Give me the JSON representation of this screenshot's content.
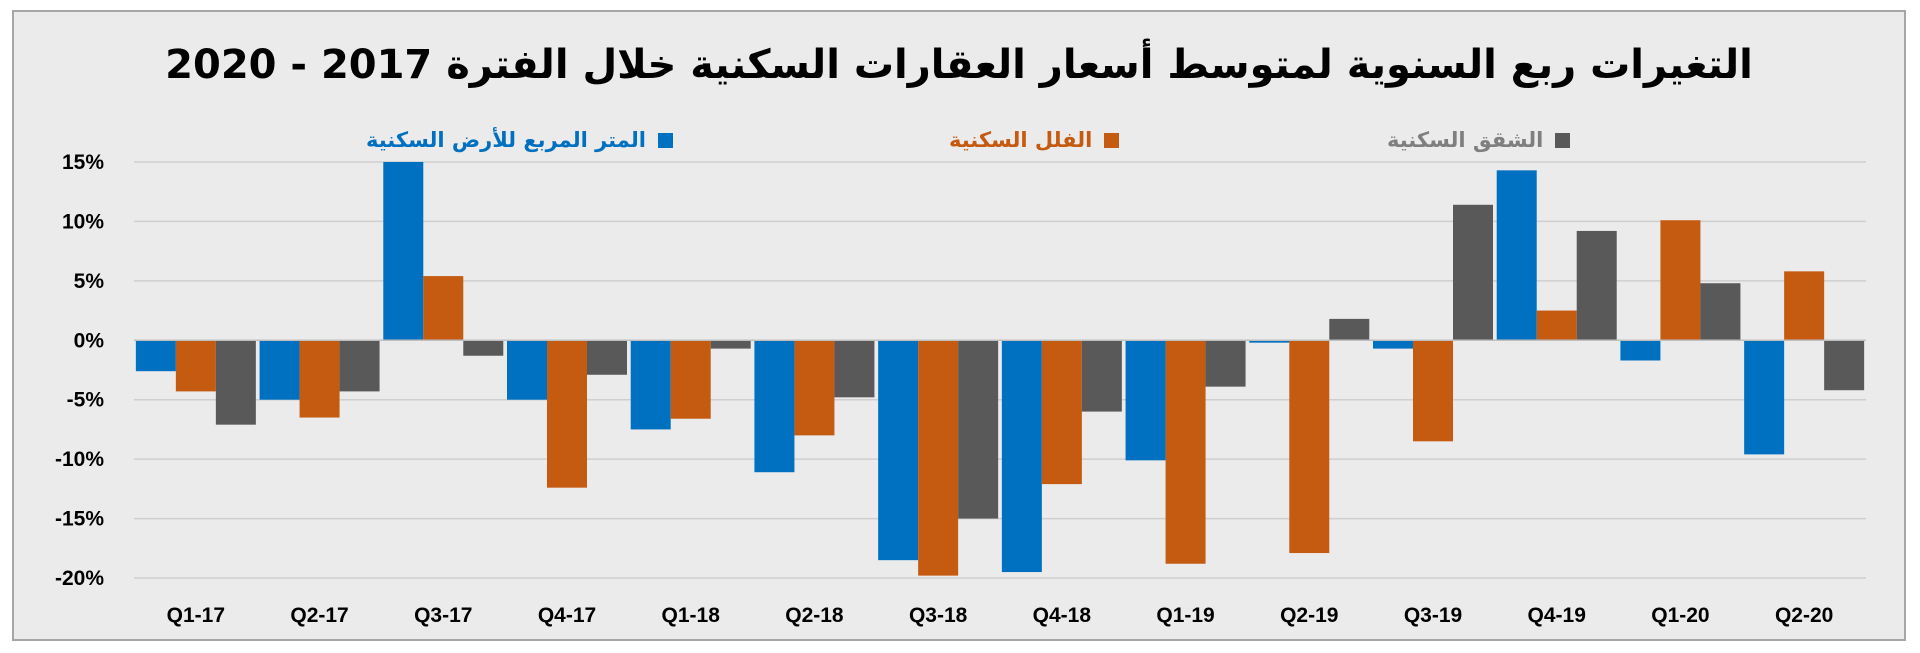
{
  "chart_data": {
    "type": "bar",
    "title": "التغيرات ربع السنوية لمتوسط أسعار العقارات السكنية خلال الفترة 2017 - 2020",
    "categories": [
      "Q1-17",
      "Q2-17",
      "Q3-17",
      "Q4-17",
      "Q1-18",
      "Q2-18",
      "Q3-18",
      "Q4-18",
      "Q1-19",
      "Q2-19",
      "Q3-19",
      "Q4-19",
      "Q1-20",
      "Q2-20"
    ],
    "ylim": [
      -20,
      15
    ],
    "yticks": [
      "15%",
      "10%",
      "5%",
      "0%",
      "-5%",
      "-10%",
      "-15%",
      "-20%"
    ],
    "ytick_values": [
      15,
      10,
      5,
      0,
      -5,
      -10,
      -15,
      -20
    ],
    "grid": true,
    "legend_position": "top",
    "series": [
      {
        "name": "المتر المربع للأرض السكنية",
        "color": "#0070c0",
        "values": [
          -2.6,
          -5.0,
          15.0,
          -5.0,
          -7.5,
          -11.1,
          -18.5,
          -19.5,
          -10.1,
          -0.2,
          -0.7,
          14.3,
          -1.7,
          -9.6
        ]
      },
      {
        "name": "الفلل السكنية",
        "color": "#c55a11",
        "values": [
          -4.3,
          -6.5,
          5.4,
          -12.4,
          -6.6,
          -8.0,
          -19.8,
          -12.1,
          -18.8,
          -17.9,
          -8.5,
          2.5,
          10.1,
          5.8
        ]
      },
      {
        "name": "الشقق السكنية",
        "color": "#595959",
        "values": [
          -7.1,
          -4.3,
          -1.3,
          -2.9,
          -0.7,
          -4.8,
          -15.0,
          -6.0,
          -3.9,
          1.8,
          11.4,
          9.2,
          4.8,
          -4.2
        ]
      }
    ]
  }
}
